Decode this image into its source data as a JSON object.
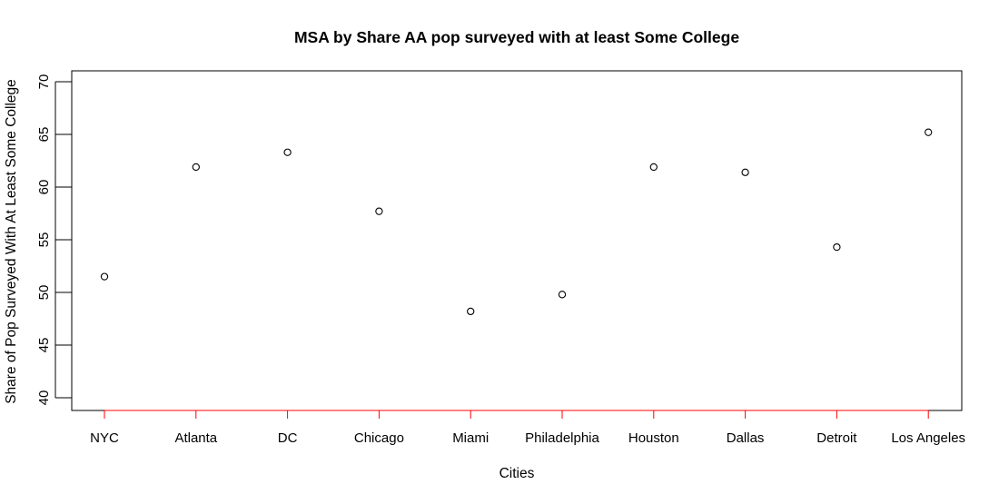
{
  "chart_data": {
    "type": "scatter",
    "title": "MSA by Share AA pop surveyed with at least Some College",
    "xlabel": "Cities",
    "ylabel": "Share of Pop Surveyed With At Least Some College",
    "categories": [
      "NYC",
      "Atlanta",
      "DC",
      "Chicago",
      "Miami",
      "Philadelphia",
      "Houston",
      "Dallas",
      "Detroit",
      "Los Angeles"
    ],
    "values": [
      51.5,
      61.9,
      63.3,
      57.7,
      48.2,
      49.8,
      61.9,
      61.4,
      54.3,
      65.2
    ],
    "ylim": [
      40,
      70
    ],
    "yticks": [
      40,
      45,
      50,
      55,
      60,
      65,
      70
    ],
    "grid": false,
    "legend": "none",
    "point_color": "#000000",
    "x_axis_color": "#ff0000"
  }
}
